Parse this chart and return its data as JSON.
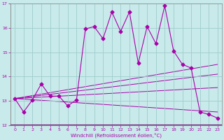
{
  "xlabel": "Windchill (Refroidissement éolien,°C)",
  "bg_color": "#c8eaea",
  "grid_color": "#a0cccc",
  "line_color": "#aa00aa",
  "xlim": [
    -0.5,
    23.5
  ],
  "ylim": [
    12,
    17
  ],
  "yticks": [
    12,
    13,
    14,
    15,
    16,
    17
  ],
  "xticks": [
    0,
    1,
    2,
    3,
    4,
    5,
    6,
    7,
    8,
    9,
    10,
    11,
    12,
    13,
    14,
    15,
    16,
    17,
    18,
    19,
    20,
    21,
    22,
    23
  ],
  "main_x": [
    0,
    1,
    2,
    3,
    4,
    5,
    6,
    7,
    8,
    9,
    10,
    11,
    12,
    13,
    14,
    15,
    16,
    17,
    18,
    19,
    20,
    21,
    22,
    23
  ],
  "main_y": [
    13.1,
    12.55,
    13.05,
    13.7,
    13.2,
    13.2,
    12.8,
    13.05,
    15.95,
    16.05,
    15.55,
    16.65,
    15.85,
    16.65,
    14.55,
    16.05,
    15.35,
    16.9,
    15.05,
    14.5,
    14.35,
    12.55,
    12.45,
    12.3
  ],
  "reg_lines": [
    {
      "x": [
        0,
        23
      ],
      "y": [
        13.1,
        12.55
      ]
    },
    {
      "x": [
        0,
        23
      ],
      "y": [
        13.1,
        13.55
      ]
    },
    {
      "x": [
        0,
        23
      ],
      "y": [
        13.1,
        14.1
      ]
    },
    {
      "x": [
        0,
        23
      ],
      "y": [
        13.1,
        14.5
      ]
    }
  ]
}
